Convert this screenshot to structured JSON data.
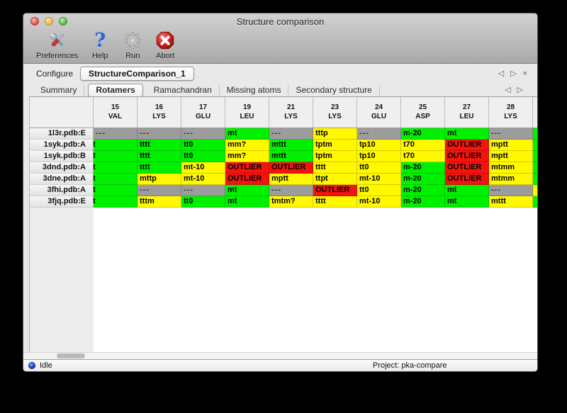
{
  "window": {
    "title": "Structure comparison"
  },
  "toolbar": {
    "preferences_label": "Preferences",
    "help_label": "Help",
    "run_label": "Run",
    "abort_label": "Abort",
    "help_glyph": "?"
  },
  "configure": {
    "label": "Configure",
    "session_tab": "StructureComparison_1"
  },
  "tabs": [
    "Summary",
    "Rotamers",
    "Ramachandran",
    "Missing atoms",
    "Secondary structure"
  ],
  "selected_tab": "Rotamers",
  "nav": {
    "prev": "◁",
    "next": "▷",
    "close": "×"
  },
  "colors": {
    "green": "#00f000",
    "yellow": "#fff800",
    "red": "#f2140e",
    "gray": "#9c9c9c"
  },
  "table": {
    "columns": [
      {
        "num": "15",
        "res": "VAL"
      },
      {
        "num": "16",
        "res": "LYS"
      },
      {
        "num": "17",
        "res": "GLU"
      },
      {
        "num": "19",
        "res": "LEU"
      },
      {
        "num": "21",
        "res": "LYS"
      },
      {
        "num": "23",
        "res": "LYS"
      },
      {
        "num": "24",
        "res": "GLU"
      },
      {
        "num": "25",
        "res": "ASP"
      },
      {
        "num": "27",
        "res": "LEU"
      },
      {
        "num": "28",
        "res": "LYS"
      }
    ],
    "rows": [
      {
        "label": "1l3r.pdb:E",
        "edge": "green",
        "cells": [
          {
            "t": "---",
            "c": "gray"
          },
          {
            "t": "---",
            "c": "gray"
          },
          {
            "t": "---",
            "c": "gray"
          },
          {
            "t": "mt",
            "c": "green"
          },
          {
            "t": "---",
            "c": "gray"
          },
          {
            "t": "tttp",
            "c": "yellow"
          },
          {
            "t": "---",
            "c": "gray"
          },
          {
            "t": "m-20",
            "c": "green"
          },
          {
            "t": "mt",
            "c": "green"
          },
          {
            "t": "---",
            "c": "gray"
          }
        ]
      },
      {
        "label": "1syk.pdb:A",
        "edge": "green",
        "cells": [
          {
            "t": "t",
            "c": "green",
            "clip": true
          },
          {
            "t": "tttt",
            "c": "green"
          },
          {
            "t": "tt0",
            "c": "green"
          },
          {
            "t": "mm?",
            "c": "yellow"
          },
          {
            "t": "mttt",
            "c": "green"
          },
          {
            "t": "tptm",
            "c": "yellow"
          },
          {
            "t": "tp10",
            "c": "yellow"
          },
          {
            "t": "t70",
            "c": "yellow"
          },
          {
            "t": "OUTLIER",
            "c": "red"
          },
          {
            "t": "mptt",
            "c": "yellow"
          }
        ]
      },
      {
        "label": "1syk.pdb:B",
        "edge": "green",
        "cells": [
          {
            "t": "t",
            "c": "green",
            "clip": true
          },
          {
            "t": "tttt",
            "c": "green"
          },
          {
            "t": "tt0",
            "c": "green"
          },
          {
            "t": "mm?",
            "c": "yellow"
          },
          {
            "t": "mttt",
            "c": "green"
          },
          {
            "t": "tptm",
            "c": "yellow"
          },
          {
            "t": "tp10",
            "c": "yellow"
          },
          {
            "t": "t70",
            "c": "yellow"
          },
          {
            "t": "OUTLIER",
            "c": "red"
          },
          {
            "t": "mptt",
            "c": "yellow"
          }
        ]
      },
      {
        "label": "3dnd.pdb:A",
        "edge": "green",
        "cells": [
          {
            "t": "t",
            "c": "green",
            "clip": true
          },
          {
            "t": "tttt",
            "c": "green"
          },
          {
            "t": "mt-10",
            "c": "yellow"
          },
          {
            "t": "OUTLIER",
            "c": "red"
          },
          {
            "t": "OUTLIER",
            "c": "red"
          },
          {
            "t": "tttt",
            "c": "yellow"
          },
          {
            "t": "tt0",
            "c": "yellow"
          },
          {
            "t": "m-20",
            "c": "green"
          },
          {
            "t": "OUTLIER",
            "c": "red"
          },
          {
            "t": "mtmm",
            "c": "yellow"
          }
        ]
      },
      {
        "label": "3dne.pdb:A",
        "edge": "green",
        "cells": [
          {
            "t": "t",
            "c": "green",
            "clip": true
          },
          {
            "t": "mttp",
            "c": "yellow"
          },
          {
            "t": "mt-10",
            "c": "yellow"
          },
          {
            "t": "OUTLIER",
            "c": "red"
          },
          {
            "t": "mptt",
            "c": "yellow"
          },
          {
            "t": "ttpt",
            "c": "yellow"
          },
          {
            "t": "mt-10",
            "c": "yellow"
          },
          {
            "t": "m-20",
            "c": "green"
          },
          {
            "t": "OUTLIER",
            "c": "red"
          },
          {
            "t": "mtmm",
            "c": "yellow"
          }
        ]
      },
      {
        "label": "3fhi.pdb:A",
        "edge": "yellow",
        "cells": [
          {
            "t": "t",
            "c": "green",
            "clip": true
          },
          {
            "t": "---",
            "c": "gray"
          },
          {
            "t": "---",
            "c": "gray"
          },
          {
            "t": "mt",
            "c": "green"
          },
          {
            "t": "---",
            "c": "gray"
          },
          {
            "t": "OUTLIER",
            "c": "red"
          },
          {
            "t": "tt0",
            "c": "yellow"
          },
          {
            "t": "m-20",
            "c": "green"
          },
          {
            "t": "mt",
            "c": "green"
          },
          {
            "t": "---",
            "c": "gray"
          }
        ]
      },
      {
        "label": "3fjq.pdb:E",
        "edge": "green",
        "cells": [
          {
            "t": "t",
            "c": "green",
            "clip": true
          },
          {
            "t": "tttm",
            "c": "yellow"
          },
          {
            "t": "tt0",
            "c": "green"
          },
          {
            "t": "mt",
            "c": "green"
          },
          {
            "t": "tmtm?",
            "c": "yellow"
          },
          {
            "t": "tttt",
            "c": "yellow"
          },
          {
            "t": "mt-10",
            "c": "yellow"
          },
          {
            "t": "m-20",
            "c": "green"
          },
          {
            "t": "mt",
            "c": "green"
          },
          {
            "t": "mttt",
            "c": "yellow"
          }
        ]
      }
    ]
  },
  "statusbar": {
    "status": "Idle",
    "project": "Project: pka-compare"
  }
}
